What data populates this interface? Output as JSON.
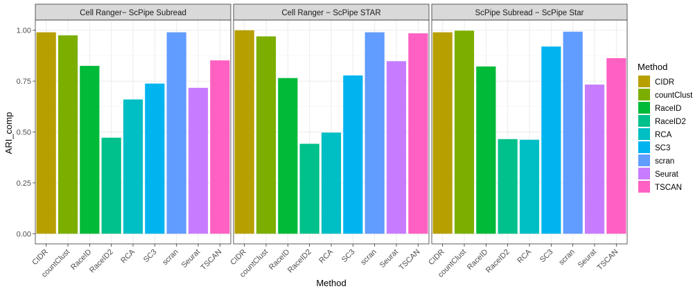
{
  "chart_data": {
    "type": "bar",
    "facets": [
      {
        "title": "Cell Ranger− ScPipe Subread",
        "values": [
          0.99,
          0.975,
          0.825,
          0.472,
          0.66,
          0.738,
          0.99,
          0.717,
          0.852
        ]
      },
      {
        "title": "Cell Ranger − ScPipe STAR",
        "values": [
          1.0,
          0.97,
          0.765,
          0.442,
          0.497,
          0.778,
          0.99,
          0.848,
          0.985
        ]
      },
      {
        "title": "ScPipe Subread − ScPipe Star",
        "values": [
          0.99,
          0.998,
          0.822,
          0.465,
          0.462,
          0.92,
          0.993,
          0.733,
          0.863
        ]
      }
    ],
    "categories": [
      "CIDR",
      "countClust",
      "RaceID",
      "RaceID2",
      "RCA",
      "SC3",
      "scran",
      "Seurat",
      "TSCAN"
    ],
    "colors": [
      "#B79F00",
      "#7CAE00",
      "#00BA38",
      "#00C08B",
      "#00BFC4",
      "#00B4F0",
      "#619CFF",
      "#C77CFF",
      "#FF61C3"
    ],
    "xlabel": "Method",
    "ylabel": "ARI_comp",
    "yticks": [
      "0.00",
      "0.25",
      "0.50",
      "0.75",
      "1.00"
    ],
    "ylim": [
      -0.05,
      1.05
    ],
    "legend": {
      "title": "Method",
      "entries": [
        "CIDR",
        "countClust",
        "RaceID",
        "RaceID2",
        "RCA",
        "SC3",
        "scran",
        "Seurat",
        "TSCAN"
      ],
      "placement": "right"
    },
    "grid": true
  }
}
